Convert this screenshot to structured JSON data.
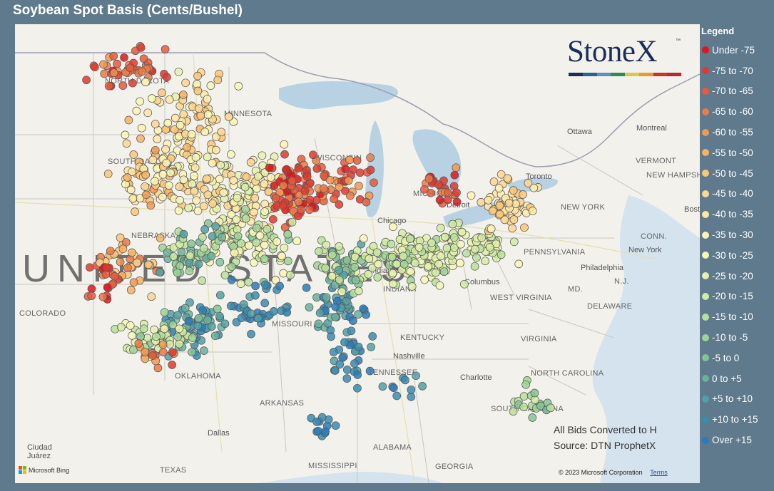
{
  "title": "Soybean Spot Basis (Cents/Bushel)",
  "legend": {
    "title": "Legend",
    "items": [
      {
        "label": "Under -75",
        "color": "#d7191c"
      },
      {
        "label": "-75 to -70",
        "color": "#df3a2e"
      },
      {
        "label": "-70 to -65",
        "color": "#e65a3d"
      },
      {
        "label": "-65 to -60",
        "color": "#ec7a48"
      },
      {
        "label": "-60 to -55",
        "color": "#f2984f"
      },
      {
        "label": "-55 to -50",
        "color": "#f7b261"
      },
      {
        "label": "-50 to -45",
        "color": "#fbc678"
      },
      {
        "label": "-45 to -40",
        "color": "#fdd68f"
      },
      {
        "label": "-40 to -35",
        "color": "#fee6a3"
      },
      {
        "label": "-35 to -30",
        "color": "#fff2b4"
      },
      {
        "label": "-30 to -25",
        "color": "#f7f7b6"
      },
      {
        "label": "-25 to -20",
        "color": "#e6f2ac"
      },
      {
        "label": "-20 to -15",
        "color": "#d1eba2"
      },
      {
        "label": "-15 to -10",
        "color": "#b9e09a"
      },
      {
        "label": "-10 to -5",
        "color": "#9fd297"
      },
      {
        "label": "-5 to 0",
        "color": "#84c397"
      },
      {
        "label": "0 to +5",
        "color": "#6bb29b"
      },
      {
        "label": "+5 to +10",
        "color": "#52a0a5"
      },
      {
        "label": "+10 to +15",
        "color": "#3a8cb0"
      },
      {
        "label": "Over +15",
        "color": "#2b7bba"
      }
    ]
  },
  "map": {
    "country_label": "UNITED STATES",
    "states": [
      {
        "name": "NORTH DAKOTA"
      },
      {
        "name": "MINNESOTA"
      },
      {
        "name": "SOUTH DAKOTA"
      },
      {
        "name": "NEBRASKA"
      },
      {
        "name": "COLORADO"
      },
      {
        "name": "MISSOURI"
      },
      {
        "name": "OKLAHOMA"
      },
      {
        "name": "ARKANSAS"
      },
      {
        "name": "TEXAS"
      },
      {
        "name": "MISSISSIPPI"
      },
      {
        "name": "ALABAMA"
      },
      {
        "name": "GEORGIA"
      },
      {
        "name": "TENNESSEE"
      },
      {
        "name": "KENTUCKY"
      },
      {
        "name": "INDIANA"
      },
      {
        "name": "WEST VIRGINIA"
      },
      {
        "name": "VIRGINIA"
      },
      {
        "name": "NORTH CAROLINA"
      },
      {
        "name": "SOUTH CAROLINA"
      },
      {
        "name": "PENNSYLVANIA"
      },
      {
        "name": "NEW YORK"
      },
      {
        "name": "VERMONT"
      },
      {
        "name": "NEW HAMPSHIRE"
      },
      {
        "name": "CONN."
      },
      {
        "name": "N.J."
      },
      {
        "name": "MD."
      },
      {
        "name": "DELAWARE"
      },
      {
        "name": "MICHIGAN"
      },
      {
        "name": "WISCONSIN"
      }
    ],
    "cities": [
      {
        "name": "Chicago"
      },
      {
        "name": "Nashville"
      },
      {
        "name": "Columbus"
      },
      {
        "name": "Indianapolis"
      },
      {
        "name": "Dallas"
      },
      {
        "name": "Ciudad Juárez"
      },
      {
        "name": "Ottawa"
      },
      {
        "name": "Montreal"
      },
      {
        "name": "Toronto"
      },
      {
        "name": "New York"
      },
      {
        "name": "Philadelphia"
      },
      {
        "name": "Boston"
      },
      {
        "name": "Charlotte"
      },
      {
        "name": "Detroit"
      }
    ]
  },
  "brand": {
    "name": "StoneX",
    "trademark": "™",
    "bar_colors": [
      "#1b2e5a",
      "#2f5f95",
      "#5f8fbf",
      "#2e8b57",
      "#d9c84b",
      "#e89a30",
      "#c8352b",
      "#b02a35"
    ]
  },
  "notes": {
    "line1": "All Bids Converted to H",
    "line2": "Source: DTN ProphetX"
  },
  "attribution": {
    "bing": "Microsoft Bing",
    "copyright": "© 2023 Microsoft Corporation",
    "terms": "Terms"
  }
}
